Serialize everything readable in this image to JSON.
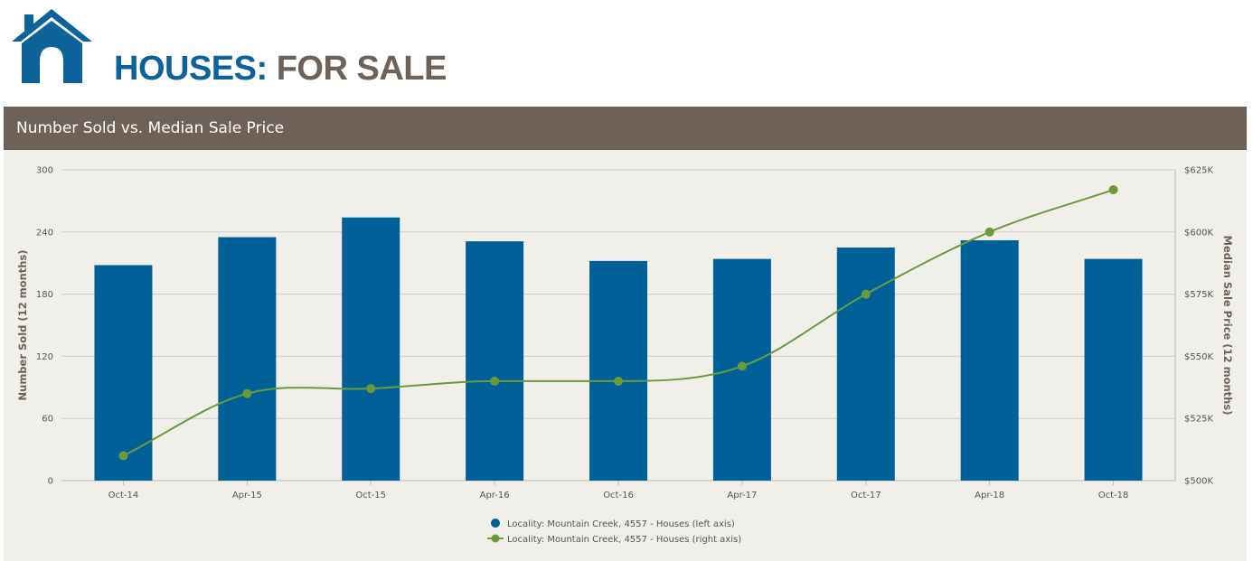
{
  "header": {
    "title_part_1": "HOUSES:",
    "title_part_2": "FOR SALE",
    "icon": "house-icon",
    "colors": {
      "primary": "#0d6299",
      "secondary": "#6e6158"
    }
  },
  "panel": {
    "title": "Number Sold vs. Median Sale Price",
    "colors": {
      "bar": "#6e6158",
      "background": "#f1efea"
    }
  },
  "chart_data": {
    "type": "bar",
    "categories": [
      "Oct-14",
      "Apr-15",
      "Oct-15",
      "Apr-16",
      "Oct-16",
      "Apr-17",
      "Oct-17",
      "Apr-18",
      "Oct-18"
    ],
    "series": [
      {
        "name": "Locality: Mountain Creek, 4557 - Houses (left axis)",
        "type": "bar",
        "axis": "left",
        "color": "#006199",
        "values": [
          208,
          235,
          254,
          231,
          212,
          214,
          225,
          232,
          214
        ]
      },
      {
        "name": "Locality: Mountain Creek, 4557 - Houses (right axis)",
        "type": "line",
        "axis": "right",
        "color": "#6a9a3a",
        "values": [
          510000,
          535000,
          537000,
          540000,
          540000,
          546000,
          575000,
          600000,
          617000
        ]
      }
    ],
    "ylabel": "Number Sold (12 months)",
    "ylabel_right": "Median Sale Price (12 months)",
    "ylim": [
      0,
      300
    ],
    "ylim_right": [
      500000,
      625000
    ],
    "yticks": [
      "0",
      "60",
      "120",
      "180",
      "240",
      "300"
    ],
    "yticks_right": [
      "$500K",
      "$525K",
      "$550K",
      "$575K",
      "$600K",
      "$625K"
    ],
    "grid": true,
    "legend": "bottom-center"
  }
}
